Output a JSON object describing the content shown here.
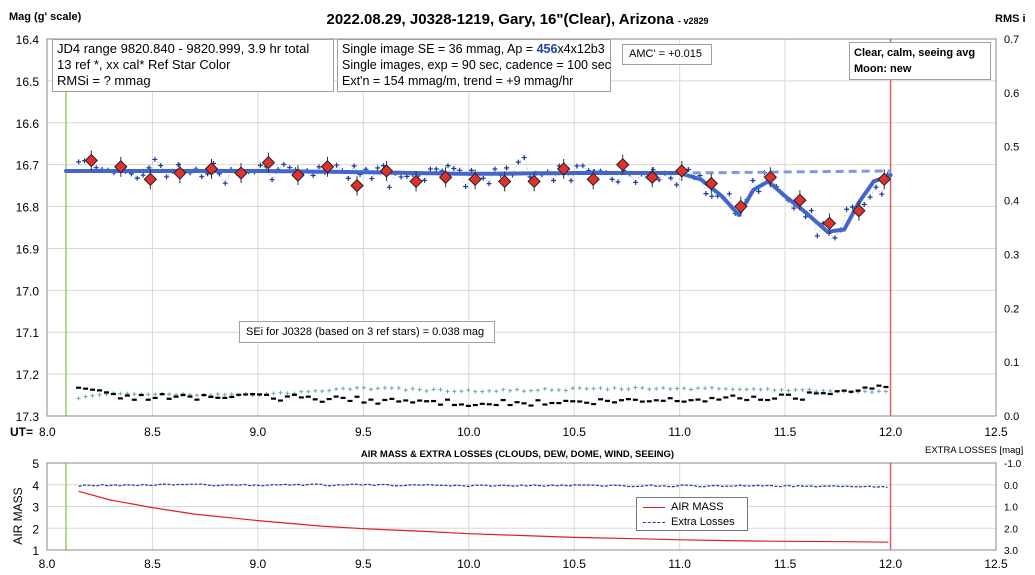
{
  "title": "2022.08.29, J0328-1219, Gary, 16\"(Clear), Arizona",
  "version": "- v2829",
  "main_ylabel": "Mag (g' scale)",
  "right_ylabel": "RMS i",
  "ut_label": "UT=",
  "info": {
    "jd4_range": "JD4 range 9820.840 - 9820.999, 3.9 hr total",
    "ref_line": "13 ref *, xx cal*  Ref Star Color",
    "rmsi": "RMSi = ? mmag",
    "se_line_pre": "Single image SE = 36 mmag, Ap = ",
    "ap_value": "456",
    "se_line_post": "x4x12b3",
    "exp_line": "Single images, exp = 90 sec, cadence = 100 sec",
    "ext_line": "Ext'n = 154 mmag/m, trend = +9 mmag/hr",
    "amc": "AMC' = +0.015",
    "conditions": "Clear, calm, seeing avg",
    "moon": "Moon: new",
    "sei": "SEi for J0328 (based on 3 ref stars) = 0.038 mag"
  },
  "lower": {
    "title": "AIR MASS & EXTRA LOSSES (CLOUDS, DEW, DOME, WIND, SEEING)",
    "ylabel": "AIR MASS",
    "right_label": "EXTRA LOSSES [mag]",
    "legend_airmass": "AIR MASS",
    "legend_losses": "Extra Losses"
  },
  "colors": {
    "model": "#4466cc",
    "points": "#1a3a9a",
    "binned": "#e03030",
    "rms": "#6aa6b8",
    "airmass": "#e02020",
    "losses": "#1a3aa0",
    "start_line": "#99cc66",
    "end_line": "#e06060"
  },
  "chart_data": [
    {
      "type": "scatter",
      "title": "2022.08.29, J0328-1219, Gary, 16\"(Clear), Arizona",
      "xlabel": "UT=",
      "ylabel": "Mag (g' scale)",
      "y2label": "RMS i",
      "xlim": [
        8.0,
        12.5
      ],
      "ylim": [
        17.3,
        16.4
      ],
      "y2lim": [
        0,
        0.7
      ],
      "xticks": [
        "8.0",
        "8.5",
        "9.0",
        "9.5",
        "10.0",
        "10.5",
        "11.0",
        "11.5",
        "12.0",
        "12.5"
      ],
      "yticks": [
        "16.4",
        "16.5",
        "16.6",
        "16.7",
        "16.8",
        "16.9",
        "17.0",
        "17.1",
        "17.2",
        "17.3"
      ],
      "y2ticks": [
        "0.0",
        "0.1",
        "0.2",
        "0.3",
        "0.4",
        "0.5",
        "0.6",
        "0.7"
      ],
      "grid": true,
      "ut_start": 8.09,
      "ut_end": 12.0,
      "binned": {
        "x": [
          8.21,
          8.35,
          8.49,
          8.63,
          8.78,
          8.92,
          9.05,
          9.19,
          9.33,
          9.47,
          9.61,
          9.75,
          9.89,
          10.03,
          10.17,
          10.31,
          10.45,
          10.59,
          10.73,
          10.87,
          11.01,
          11.15,
          11.29,
          11.43,
          11.57,
          11.71,
          11.85,
          11.97
        ],
        "y": [
          16.69,
          16.705,
          16.735,
          16.72,
          16.71,
          16.72,
          16.695,
          16.725,
          16.705,
          16.75,
          16.715,
          16.74,
          16.73,
          16.735,
          16.74,
          16.74,
          16.71,
          16.735,
          16.7,
          16.73,
          16.715,
          16.745,
          16.8,
          16.73,
          16.785,
          16.84,
          16.81,
          16.735
        ]
      },
      "model": {
        "x": [
          8.09,
          9.0,
          9.5,
          10.0,
          10.5,
          11.0,
          11.1,
          11.2,
          11.28,
          11.35,
          11.42,
          11.5,
          11.6,
          11.7,
          11.78,
          11.85,
          11.92,
          12.0
        ],
        "y": [
          16.715,
          16.715,
          16.718,
          16.722,
          16.72,
          16.72,
          16.735,
          16.775,
          16.82,
          16.76,
          16.74,
          16.775,
          16.815,
          16.86,
          16.855,
          16.79,
          16.74,
          16.725
        ]
      },
      "trend": {
        "x": [
          11.0,
          12.0
        ],
        "y": [
          16.72,
          16.715
        ]
      }
    },
    {
      "type": "line",
      "title": "AIR MASS & EXTRA LOSSES (CLOUDS, DEW, DOME, WIND, SEEING)",
      "ylabel": "AIR MASS",
      "y2label": "EXTRA LOSSES [mag]",
      "xlim": [
        8.0,
        12.5
      ],
      "ylim": [
        1,
        5
      ],
      "y2lim": [
        -1.0,
        3.0
      ],
      "xticks": [
        "8.0",
        "8.5",
        "9.0",
        "9.5",
        "10.0",
        "10.5",
        "11.0",
        "11.5",
        "12.0",
        "12.5"
      ],
      "yticks": [
        "1",
        "2",
        "3",
        "4",
        "5"
      ],
      "y2ticks": [
        "-1.0",
        "0.0",
        "1.0",
        "2.0",
        "3.0"
      ],
      "series": [
        {
          "name": "AIR MASS",
          "x": [
            8.15,
            8.3,
            8.5,
            8.7,
            9.0,
            9.3,
            9.5,
            9.8,
            10.0,
            10.3,
            10.5,
            10.8,
            11.0,
            11.3,
            11.5,
            11.8,
            11.99
          ],
          "y": [
            3.7,
            3.3,
            2.95,
            2.65,
            2.35,
            2.1,
            1.98,
            1.85,
            1.75,
            1.65,
            1.58,
            1.52,
            1.47,
            1.42,
            1.4,
            1.38,
            1.36
          ]
        },
        {
          "name": "Extra Losses",
          "x": [
            8.15,
            8.5,
            9.0,
            9.5,
            10.0,
            10.5,
            11.0,
            11.5,
            11.8,
            11.99
          ],
          "y": [
            0.05,
            0.0,
            0.02,
            0.0,
            0.05,
            0.04,
            0.05,
            0.05,
            0.1,
            0.08
          ]
        }
      ]
    }
  ]
}
